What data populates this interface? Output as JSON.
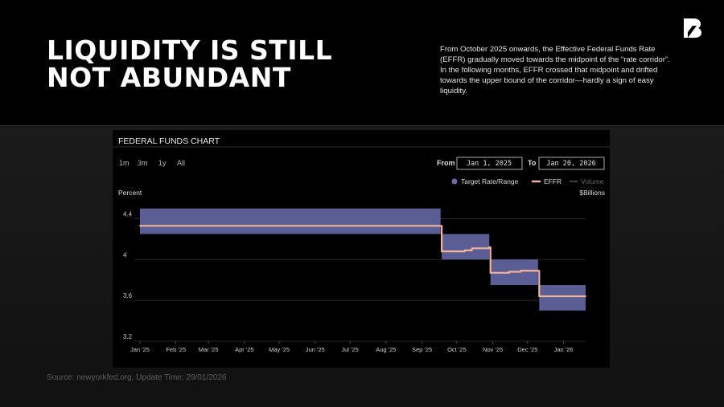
{
  "headline": {
    "line1": "LIQUIDITY IS STILL",
    "line2": "NOT ABUNDANT"
  },
  "description": "From October 2025 onwards, the Effective Federal Funds Rate (EFFR) gradually moved towards the midpoint of the “rate corridor”. In the following months, EFFR crossed that midpoint and drifted towards the upper bound of the corridor—hardly a sign of easy liquidity.",
  "source": "Source: newyorkfed.org, Update Time: 29/01/2026",
  "logo": {
    "icon": "brand-b-logo-icon",
    "color": "#ffffff"
  },
  "chart_panel": {
    "title": "FEDERAL FUNDS CHART",
    "range_buttons": [
      "1m",
      "3m",
      "1y",
      "All"
    ],
    "from_label": "From",
    "from_value": "Jan 1, 2025",
    "to_label": "To",
    "to_value": "Jan 20, 2026",
    "legend": [
      {
        "label": "Target Rate/Range",
        "color": "#6b6fa8",
        "marker": "dot"
      },
      {
        "label": "EFFR",
        "color": "#f3b39a",
        "marker": "line"
      },
      {
        "label": "Volume",
        "color": "#555555",
        "marker": "line"
      }
    ],
    "left_axis_label": "Percent",
    "right_axis_label": "$Billions"
  },
  "chart_data": {
    "type": "line",
    "xlabel": "",
    "ylabel": "Percent",
    "xlim": [
      "2025-01-01",
      "2026-01-20"
    ],
    "ylim": [
      3.2,
      4.6
    ],
    "y_ticks": [
      3.2,
      3.6,
      4,
      4.4
    ],
    "x_ticks": [
      {
        "date": "2025-01-01",
        "label": "Jan '25"
      },
      {
        "date": "2025-02-01",
        "label": "Feb '25"
      },
      {
        "date": "2025-03-01",
        "label": "Mar '25"
      },
      {
        "date": "2025-04-01",
        "label": "Apr '25"
      },
      {
        "date": "2025-05-01",
        "label": "May '25"
      },
      {
        "date": "2025-06-01",
        "label": "Jun '25"
      },
      {
        "date": "2025-07-01",
        "label": "Jul '25"
      },
      {
        "date": "2025-08-01",
        "label": "Aug '25"
      },
      {
        "date": "2025-09-01",
        "label": "Sep '25"
      },
      {
        "date": "2025-10-01",
        "label": "Oct '25"
      },
      {
        "date": "2025-11-01",
        "label": "Nov '25"
      },
      {
        "date": "2025-12-01",
        "label": "Dec '25"
      },
      {
        "date": "2026-01-01",
        "label": "Jan '26"
      }
    ],
    "grid": true,
    "series": [
      {
        "name": "Target Rate/Range",
        "kind": "band",
        "color": "#5a5e94",
        "segments": [
          {
            "start": "2025-01-01",
            "end": "2025-09-17",
            "lower": 4.25,
            "upper": 4.5
          },
          {
            "start": "2025-09-18",
            "end": "2025-10-29",
            "lower": 4.0,
            "upper": 4.25
          },
          {
            "start": "2025-10-30",
            "end": "2025-12-10",
            "lower": 3.75,
            "upper": 4.0
          },
          {
            "start": "2025-12-11",
            "end": "2026-01-20",
            "lower": 3.5,
            "upper": 3.75
          }
        ]
      },
      {
        "name": "EFFR",
        "kind": "line",
        "color": "#f3b39a",
        "x": [
          "2025-01-01",
          "2025-09-17",
          "2025-09-18",
          "2025-10-08",
          "2025-10-14",
          "2025-10-29",
          "2025-10-30",
          "2025-11-15",
          "2025-11-25",
          "2025-12-10",
          "2025-12-11",
          "2026-01-20"
        ],
        "y": [
          4.33,
          4.33,
          4.08,
          4.09,
          4.11,
          4.12,
          3.87,
          3.88,
          3.89,
          3.89,
          3.64,
          3.64
        ]
      }
    ]
  }
}
